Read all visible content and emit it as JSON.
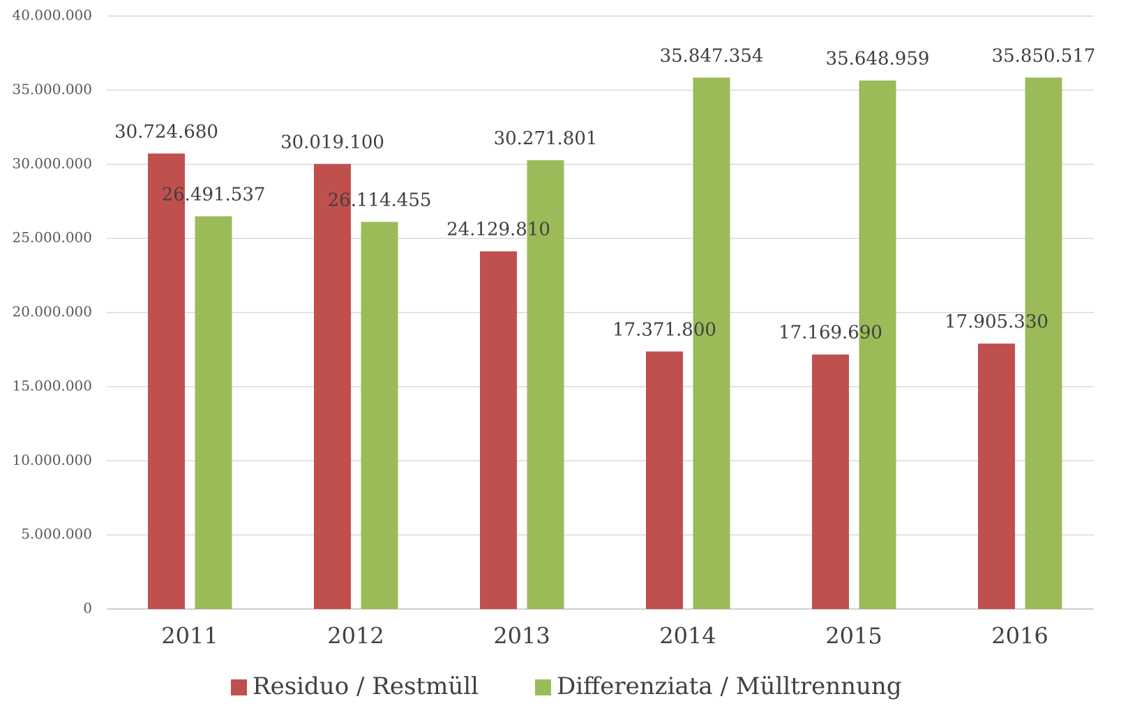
{
  "chart_data": {
    "type": "bar",
    "categories": [
      "2011",
      "2012",
      "2013",
      "2014",
      "2015",
      "2016"
    ],
    "series": [
      {
        "name": "Residuo / Restmüll",
        "color": "#c0504d",
        "values": [
          30724680,
          30019100,
          24129810,
          17371800,
          17169690,
          17905330
        ],
        "value_labels": [
          "30.724.680",
          "30.019.100",
          "24.129.810",
          "17.371.800",
          "17.169.690",
          "17.905.330"
        ]
      },
      {
        "name": "Differenziata / Mülltrennung",
        "color": "#9bbb59",
        "values": [
          26491537,
          26114455,
          30271801,
          35847354,
          35648959,
          35850517
        ],
        "value_labels": [
          "26.491.537",
          "26.114.455",
          "30.271.801",
          "35.847.354",
          "35.648.959",
          "35.850.517"
        ]
      }
    ],
    "ylim": [
      0,
      40000000
    ],
    "yticks": [
      0,
      {
        "value": 5000000,
        "label": "5.000.000"
      },
      {
        "value": 10000000,
        "label": "10.000.000"
      },
      {
        "value": 15000000,
        "label": "15.000.000"
      },
      {
        "value": 20000000,
        "label": "20.000.000"
      },
      {
        "value": 25000000,
        "label": "25.000.000"
      },
      {
        "value": 30000000,
        "label": "30.000.000"
      },
      {
        "value": 35000000,
        "label": "35.000.000"
      },
      {
        "value": 40000000,
        "label": "40.000.000"
      }
    ],
    "grid": true,
    "legend": "bottom"
  }
}
